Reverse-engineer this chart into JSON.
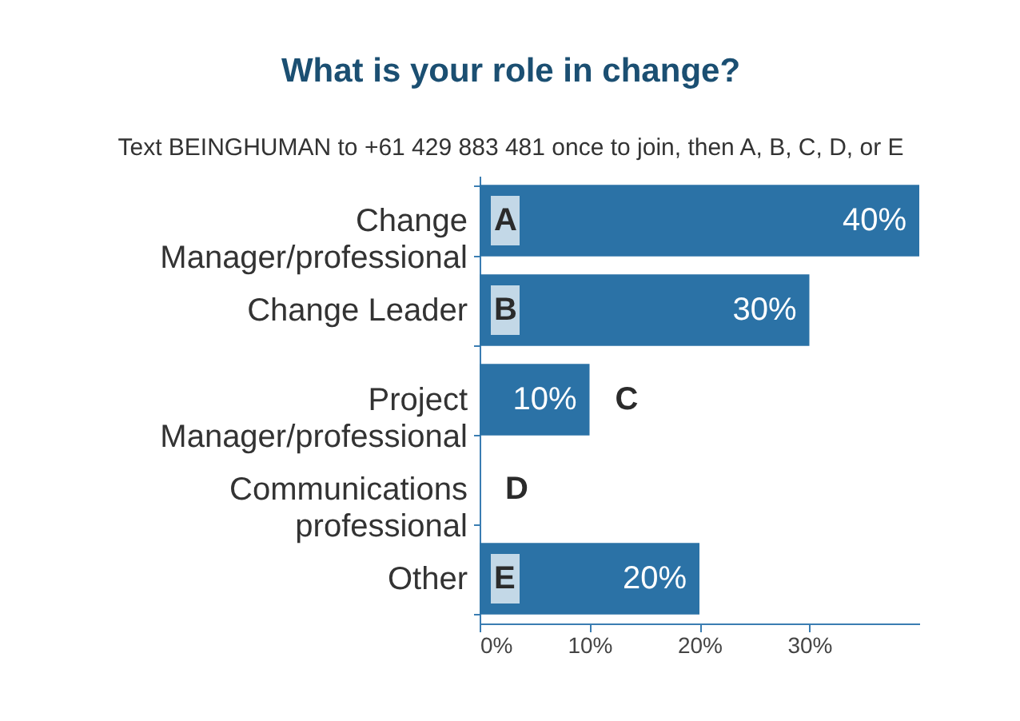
{
  "chart_data": {
    "type": "bar",
    "orientation": "horizontal",
    "title": "What is your role in change?",
    "subtitle": "Text BEINGHUMAN to +61 429 883 481 once to join, then A, B, C, D, or E",
    "categories": [
      "Change Manager/professional",
      "Change Leader",
      "Project Manager/professional",
      "Communications professional",
      "Other"
    ],
    "values": [
      40,
      30,
      10,
      0,
      20
    ],
    "color": "#2b72a6",
    "value_labels": [
      "40%",
      "30%",
      "10%",
      null,
      "20%"
    ],
    "xlim": [
      0,
      40
    ],
    "xticks": [
      {
        "value": 0,
        "label": "0%"
      },
      {
        "value": 10,
        "label": "10%"
      },
      {
        "value": 20,
        "label": "20%"
      },
      {
        "value": 30,
        "label": "30%"
      }
    ],
    "grid": false,
    "annotations": [
      "A",
      "B",
      "C",
      "D",
      "E"
    ]
  }
}
